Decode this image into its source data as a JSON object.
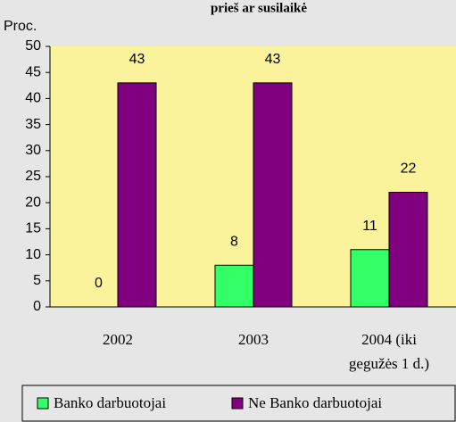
{
  "chart_data": {
    "type": "bar",
    "title": "prieš ar susilaikė",
    "y_label": "Proc.",
    "categories": [
      "2002",
      "2003",
      "2004 (iki gegužės 1 d.)"
    ],
    "series": [
      {
        "name": "Banko darbuotojai",
        "color": "#33FF66",
        "values": [
          0,
          8,
          11
        ]
      },
      {
        "name": "Ne Banko darbuotojai",
        "color": "#800080",
        "values": [
          43,
          43,
          22
        ]
      }
    ],
    "ylim": [
      0,
      50
    ],
    "yticks": [
      0,
      5,
      10,
      15,
      20,
      25,
      30,
      35,
      40,
      45,
      50
    ],
    "grid": false,
    "legend": "bottom"
  }
}
